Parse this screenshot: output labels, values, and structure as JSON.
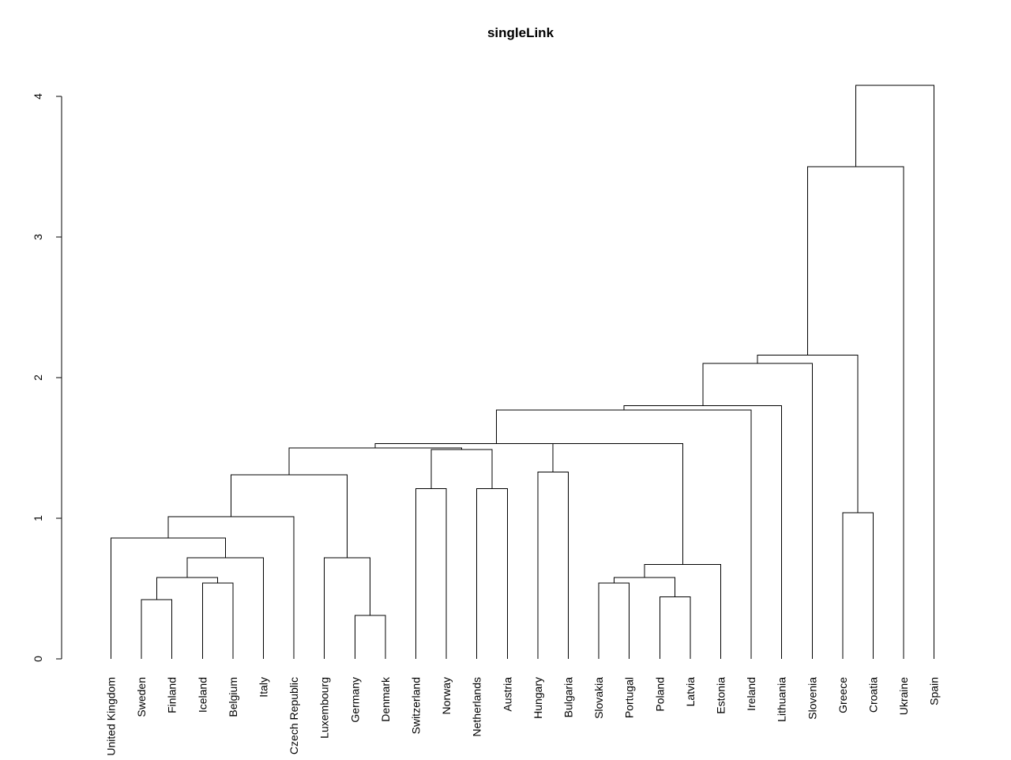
{
  "chart_data": {
    "type": "dendrogram",
    "title": "singleLink",
    "xlabel": "",
    "ylabel": "",
    "ylim": [
      0,
      4
    ],
    "yticks": [
      0,
      1,
      2,
      3,
      4
    ],
    "grid": false,
    "leaves": [
      "United Kingdom",
      "Sweden",
      "Finland",
      "Iceland",
      "Belgium",
      "Italy",
      "Czech Republic",
      "Luxembourg",
      "Germany",
      "Denmark",
      "Switzerland",
      "Norway",
      "Netherlands",
      "Austria",
      "Hungary",
      "Bulgaria",
      "Slovakia",
      "Portugal",
      "Poland",
      "Latvia",
      "Estonia",
      "Ireland",
      "Lithuania",
      "Slovenia",
      "Greece",
      "Croatia",
      "Ukraine",
      "Spain"
    ],
    "merges": [
      {
        "left": "Sweden",
        "right": "Finland",
        "height": 0.42
      },
      {
        "left": "Iceland",
        "right": "Belgium",
        "height": 0.54
      },
      {
        "left": "Sweden+Finland",
        "right": "Iceland+Belgium",
        "height": 0.58
      },
      {
        "left": "Sweden..Belgium",
        "right": "Italy",
        "height": 0.72
      },
      {
        "left": "United Kingdom",
        "right": "Sweden..Italy",
        "height": 0.86
      },
      {
        "left": "United Kingdom..Italy",
        "right": "Czech Republic",
        "height": 1.01
      },
      {
        "left": "Germany",
        "right": "Denmark",
        "height": 0.31
      },
      {
        "left": "Luxembourg",
        "right": "Germany+Denmark",
        "height": 0.72
      },
      {
        "left": "United Kingdom..Czech Republic",
        "right": "Luxembourg..Denmark",
        "height": 1.31
      },
      {
        "left": "Switzerland",
        "right": "Norway",
        "height": 1.21
      },
      {
        "left": "Netherlands",
        "right": "Austria",
        "height": 1.21
      },
      {
        "left": "Switzerland+Norway",
        "right": "Netherlands+Austria",
        "height": 1.49
      },
      {
        "left": "United Kingdom..Denmark",
        "right": "Switzerland..Austria",
        "height": 1.5
      },
      {
        "left": "Hungary",
        "right": "Bulgaria",
        "height": 1.33
      },
      {
        "left": "Slovakia",
        "right": "Portugal",
        "height": 0.54
      },
      {
        "left": "Poland",
        "right": "Latvia",
        "height": 0.44
      },
      {
        "left": "Slovakia+Portugal",
        "right": "Poland+Latvia",
        "height": 0.58
      },
      {
        "left": "Slovakia..Latvia",
        "right": "Estonia",
        "height": 0.67
      },
      {
        "left": "Hungary+Bulgaria",
        "right": "Slovakia..Estonia",
        "height": 1.53
      },
      {
        "left": "United Kingdom..Austria",
        "right": "Hungary..Estonia",
        "height": 1.53
      },
      {
        "left": "United Kingdom..Estonia",
        "right": "Ireland",
        "height": 1.77
      },
      {
        "left": "United Kingdom..Ireland",
        "right": "Lithuania",
        "height": 1.8
      },
      {
        "left": "United Kingdom..Lithuania",
        "right": "Slovenia",
        "height": 2.1
      },
      {
        "left": "Greece",
        "right": "Croatia",
        "height": 1.04
      },
      {
        "left": "United Kingdom..Slovenia",
        "right": "Greece+Croatia",
        "height": 2.16
      },
      {
        "left": "United Kingdom..Croatia",
        "right": "Ukraine",
        "height": 3.5
      },
      {
        "left": "United Kingdom..Ukraine",
        "right": "Spain",
        "height": 4.08
      }
    ]
  }
}
